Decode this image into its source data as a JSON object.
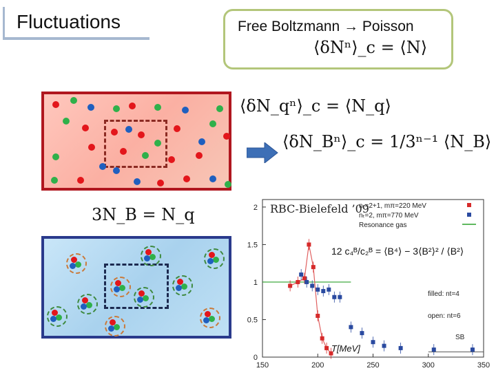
{
  "slide": {
    "title": "Fluctuations"
  },
  "callout": {
    "title": "Free Boltzmann → Poisson",
    "equation": "⟨δNⁿ⟩_c = ⟨N⟩"
  },
  "equations": {
    "quark_cumulant": "⟨δN_qⁿ⟩_c = ⟨N_q⟩",
    "baryon_cumulant": "⟨δN_Bⁿ⟩_c = 1/3ⁿ⁻¹ ⟨N_B⟩",
    "baryon_quark_relation": "3N_B = N_q"
  },
  "colors": {
    "red": "#e3161b",
    "green": "#2fb04a",
    "blue": "#1f5fbf",
    "arrow": "#3d6fb6",
    "red_frame": "#b0171f",
    "blue_frame": "#2a3a8c"
  },
  "chart_data": {
    "type": "scatter",
    "annotation": "RBC-Bielefeld ’09",
    "xlabel": "T[MeV]",
    "ylabel": "",
    "xlim": [
      150,
      350
    ],
    "ylim": [
      0,
      2.1
    ],
    "x_ticks": [
      "150",
      "200",
      "250",
      "300",
      "350"
    ],
    "y_ticks": [
      "0",
      "0.5",
      "1",
      "1.5",
      "2"
    ],
    "y_ratio_label": "12 c₄ᴮ/c₂ᴮ = ⟨B⁴⟩ − 3⟨B²⟩² / ⟨B²⟩",
    "legend": [
      {
        "label": "nₜ=2+1, mπ=220 MeV",
        "color": "#d62a2a",
        "marker": "square"
      },
      {
        "label": "nₜ=2, mπ=770 MeV",
        "color": "#2a4aa0",
        "marker": "square"
      },
      {
        "label": "Resonance gas",
        "color": "#2aa02a",
        "marker": "line"
      }
    ],
    "notes": [
      "filled: nt=4",
      "open: nt=6",
      "SB"
    ],
    "series": [
      {
        "name": "nₜ=2+1, mπ=220 MeV",
        "color": "#d62a2a",
        "x": [
          175,
          182,
          188,
          192,
          196,
          200,
          204,
          208,
          212
        ],
        "y": [
          0.95,
          1.0,
          1.05,
          1.5,
          1.2,
          0.55,
          0.25,
          0.12,
          0.05
        ]
      },
      {
        "name": "nₜ=2, mπ=770 MeV",
        "color": "#2a4aa0",
        "x": [
          185,
          190,
          195,
          200,
          205,
          210,
          215,
          220,
          230,
          240,
          250,
          260,
          275,
          305,
          340
        ],
        "y": [
          1.1,
          1.0,
          0.95,
          0.9,
          0.88,
          0.9,
          0.8,
          0.8,
          0.4,
          0.32,
          0.2,
          0.15,
          0.12,
          0.1,
          0.1
        ]
      }
    ],
    "resonance_gas": {
      "x": [
        150,
        230
      ],
      "y": [
        1,
        1
      ]
    },
    "sb_level": 0.07,
    "sb_x": [
      300,
      350
    ]
  }
}
